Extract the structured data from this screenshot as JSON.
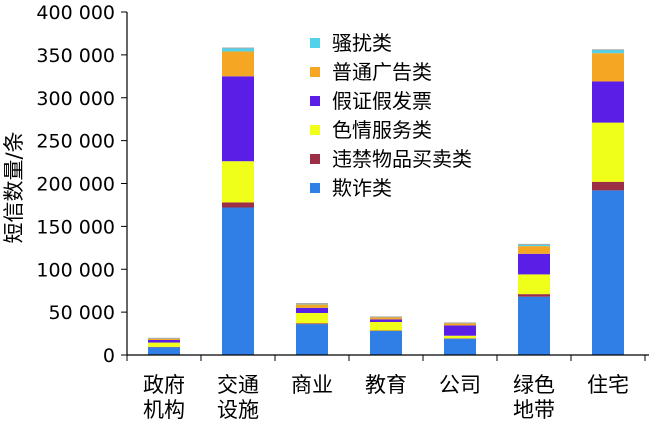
{
  "chart_data": {
    "type": "bar",
    "stacked": true,
    "title": "",
    "xlabel": "",
    "ylabel": "短信数量/条",
    "ylim": [
      0,
      400000
    ],
    "yticks": [
      0,
      50000,
      100000,
      150000,
      200000,
      250000,
      300000,
      350000,
      400000
    ],
    "ytick_labels": [
      "0",
      "50 000",
      "100 000",
      "150 000",
      "200 000",
      "250 000",
      "300 000",
      "350 000",
      "400 000"
    ],
    "grid": false,
    "legend_position": "top-center",
    "categories": [
      [
        "政府",
        "机构"
      ],
      [
        "交通",
        "设施"
      ],
      [
        "商业"
      ],
      [
        "教育"
      ],
      [
        "公司"
      ],
      [
        "绿色",
        "地带"
      ],
      [
        "住宅"
      ]
    ],
    "series": [
      {
        "name": "欺诈类",
        "color": "#2f7fe6",
        "values": [
          9000,
          172000,
          36000,
          28000,
          19000,
          68000,
          192000
        ]
      },
      {
        "name": "违禁物品买卖类",
        "color": "#9c2f45",
        "values": [
          500,
          6000,
          1000,
          500,
          500,
          3000,
          10000
        ]
      },
      {
        "name": "色情服务类",
        "color": "#f0ff1a",
        "values": [
          5000,
          48000,
          12000,
          10000,
          3000,
          23000,
          69000
        ]
      },
      {
        "name": "假证假发票",
        "color": "#5a1ee6",
        "values": [
          3000,
          99000,
          6000,
          3000,
          12000,
          24000,
          48000
        ]
      },
      {
        "name": "普通广告类",
        "color": "#f5a623",
        "values": [
          1500,
          29000,
          4000,
          2500,
          2500,
          9000,
          33000
        ]
      },
      {
        "name": "骚扰类",
        "color": "#4fd2ea",
        "values": [
          500,
          4000,
          1000,
          500,
          500,
          2000,
          4000
        ]
      }
    ]
  }
}
